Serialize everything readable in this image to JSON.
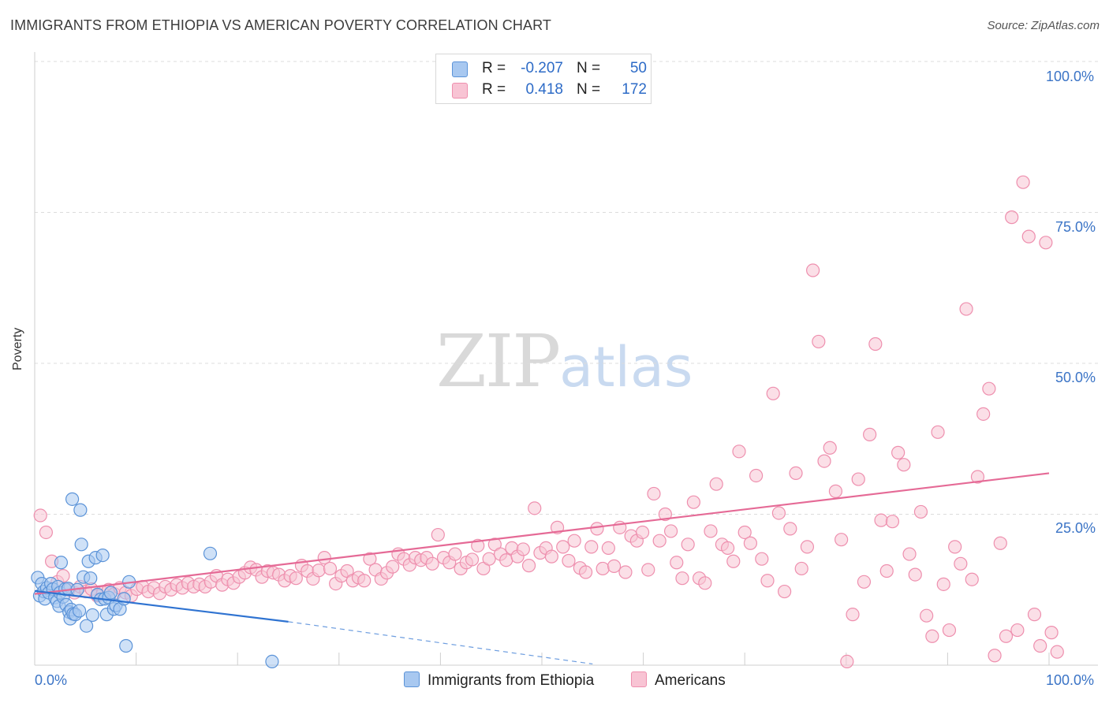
{
  "header": {
    "title": "IMMIGRANTS FROM ETHIOPIA VS AMERICAN POVERTY CORRELATION CHART",
    "source": "Source: ZipAtlas.com"
  },
  "legend": {
    "rows": [
      {
        "r_label": "R =",
        "r_value": "-0.207",
        "n_label": "N =",
        "n_value": "50",
        "color": "#a8c8f0"
      },
      {
        "r_label": "R =",
        "r_value": "0.418",
        "n_label": "N =",
        "n_value": "172",
        "color": "#f8b8cc"
      }
    ],
    "bottom": [
      {
        "label": "Immigrants from Ethiopia",
        "color": "#a8c8f0"
      },
      {
        "label": "Americans",
        "color": "#f8b8cc"
      }
    ]
  },
  "watermark": {
    "zip": "ZIP",
    "atlas": "atlas"
  },
  "colors": {
    "blue_fill": "#a8c8f0",
    "blue_stroke": "#5b93d8",
    "blue_line": "#2f73d1",
    "pink_fill": "#f8c4d4",
    "pink_stroke": "#ee8fae",
    "pink_line": "#e56a96",
    "tick_text": "#3b74c6",
    "grid": "#dcdcdc"
  },
  "chart_data": {
    "type": "scatter",
    "title": "IMMIGRANTS FROM ETHIOPIA VS AMERICAN POVERTY CORRELATION CHART",
    "xlabel": "",
    "ylabel": "Poverty",
    "xlim": [
      0,
      100
    ],
    "ylim": [
      0,
      100
    ],
    "x_ticks": [
      "0.0%",
      "100.0%"
    ],
    "y_ticks": [
      "25.0%",
      "50.0%",
      "75.0%",
      "100.0%"
    ],
    "y_tick_values": [
      25,
      50,
      75,
      100
    ],
    "grid": true,
    "legend_position": "top-center",
    "series": [
      {
        "name": "Immigrants from Ethiopia",
        "R": -0.207,
        "N": 50,
        "trend": {
          "x": [
            0,
            25
          ],
          "y": [
            12.3,
            7.2
          ],
          "dashed_to": [
            55,
            0.2
          ]
        },
        "points": [
          [
            0.3,
            14.5
          ],
          [
            0.5,
            11.5
          ],
          [
            0.7,
            13.5
          ],
          [
            0.9,
            12.2
          ],
          [
            1.0,
            11.0
          ],
          [
            1.2,
            12.8
          ],
          [
            1.4,
            12.0
          ],
          [
            1.6,
            13.5
          ],
          [
            1.8,
            12.6
          ],
          [
            2.0,
            11.2
          ],
          [
            2.2,
            10.6
          ],
          [
            2.3,
            13.0
          ],
          [
            2.4,
            9.8
          ],
          [
            2.5,
            12.0
          ],
          [
            2.6,
            17.0
          ],
          [
            2.8,
            11.3
          ],
          [
            3.0,
            12.6
          ],
          [
            3.1,
            10.0
          ],
          [
            3.3,
            12.7
          ],
          [
            3.4,
            8.8
          ],
          [
            3.5,
            7.7
          ],
          [
            3.6,
            9.2
          ],
          [
            3.7,
            27.5
          ],
          [
            3.8,
            8.5
          ],
          [
            4.0,
            8.4
          ],
          [
            4.2,
            12.5
          ],
          [
            4.4,
            9.0
          ],
          [
            4.5,
            25.7
          ],
          [
            4.6,
            20.0
          ],
          [
            4.8,
            14.6
          ],
          [
            5.1,
            6.5
          ],
          [
            5.3,
            17.2
          ],
          [
            5.5,
            14.4
          ],
          [
            5.7,
            8.3
          ],
          [
            6.0,
            17.8
          ],
          [
            6.2,
            11.7
          ],
          [
            6.5,
            10.9
          ],
          [
            6.7,
            18.2
          ],
          [
            6.9,
            11.0
          ],
          [
            7.1,
            8.4
          ],
          [
            7.3,
            11.2
          ],
          [
            7.5,
            12.0
          ],
          [
            7.8,
            9.3
          ],
          [
            8.0,
            9.9
          ],
          [
            8.4,
            9.3
          ],
          [
            8.8,
            11.0
          ],
          [
            9.0,
            3.2
          ],
          [
            9.3,
            13.8
          ],
          [
            17.3,
            18.5
          ],
          [
            23.4,
            0.6
          ]
        ]
      },
      {
        "name": "Americans",
        "R": 0.418,
        "N": 172,
        "trend": {
          "x": [
            0,
            100
          ],
          "y": [
            11.8,
            31.8
          ]
        },
        "points": [
          [
            0.4,
            24.8
          ],
          [
            0.8,
            22.0
          ],
          [
            1.2,
            17.2
          ],
          [
            1.6,
            13.8
          ],
          [
            2.0,
            14.8
          ],
          [
            2.4,
            12.5
          ],
          [
            2.8,
            12.0
          ],
          [
            3.2,
            13.0
          ],
          [
            3.6,
            12.2
          ],
          [
            4.0,
            12.6
          ],
          [
            4.4,
            11.5
          ],
          [
            4.8,
            12.0
          ],
          [
            5.2,
            12.5
          ],
          [
            5.6,
            11.8
          ],
          [
            6.0,
            12.8
          ],
          [
            6.4,
            12.0
          ],
          [
            6.8,
            11.5
          ],
          [
            7.2,
            12.6
          ],
          [
            7.6,
            13.0
          ],
          [
            8.0,
            12.2
          ],
          [
            8.4,
            12.8
          ],
          [
            8.8,
            11.9
          ],
          [
            9.2,
            13.0
          ],
          [
            9.6,
            12.5
          ],
          [
            10.0,
            13.3
          ],
          [
            10.4,
            12.8
          ],
          [
            10.8,
            13.6
          ],
          [
            11.2,
            13.0
          ],
          [
            11.6,
            13.4
          ],
          [
            12.0,
            13.0
          ],
          [
            12.4,
            13.8
          ],
          [
            12.8,
            14.8
          ],
          [
            13.2,
            13.3
          ],
          [
            13.6,
            14.2
          ],
          [
            14.0,
            13.6
          ],
          [
            14.4,
            14.6
          ],
          [
            14.8,
            15.3
          ],
          [
            15.2,
            16.2
          ],
          [
            15.6,
            15.8
          ],
          [
            16.0,
            14.6
          ],
          [
            16.4,
            15.6
          ],
          [
            16.8,
            15.3
          ],
          [
            17.2,
            15.0
          ],
          [
            17.6,
            14.0
          ],
          [
            18.0,
            14.8
          ],
          [
            18.4,
            14.4
          ],
          [
            18.8,
            16.5
          ],
          [
            19.2,
            15.6
          ],
          [
            19.6,
            14.3
          ],
          [
            20.0,
            15.7
          ],
          [
            20.4,
            17.8
          ],
          [
            20.8,
            16.0
          ],
          [
            21.2,
            13.5
          ],
          [
            21.6,
            14.8
          ],
          [
            22.0,
            15.6
          ],
          [
            22.4,
            14.0
          ],
          [
            22.8,
            14.5
          ],
          [
            23.2,
            14.0
          ],
          [
            23.6,
            17.6
          ],
          [
            24.0,
            15.8
          ],
          [
            24.4,
            14.3
          ],
          [
            24.8,
            15.3
          ],
          [
            25.2,
            16.3
          ],
          [
            25.6,
            18.4
          ],
          [
            26.0,
            17.6
          ],
          [
            26.4,
            16.6
          ],
          [
            26.8,
            17.8
          ],
          [
            27.2,
            17.4
          ],
          [
            27.6,
            17.8
          ],
          [
            28.0,
            16.8
          ],
          [
            28.4,
            21.6
          ],
          [
            28.8,
            17.8
          ],
          [
            29.2,
            17.0
          ],
          [
            29.6,
            18.4
          ],
          [
            30.0,
            16.0
          ],
          [
            30.4,
            17.0
          ],
          [
            30.8,
            17.5
          ],
          [
            31.2,
            19.8
          ],
          [
            31.6,
            16.0
          ],
          [
            32.0,
            17.6
          ],
          [
            32.4,
            20.0
          ],
          [
            32.8,
            18.4
          ],
          [
            33.2,
            17.4
          ],
          [
            33.6,
            19.4
          ],
          [
            34.0,
            18.0
          ],
          [
            34.4,
            19.2
          ],
          [
            34.8,
            16.5
          ],
          [
            35.2,
            26.0
          ],
          [
            35.6,
            18.6
          ],
          [
            36.0,
            19.4
          ],
          [
            36.4,
            18.0
          ],
          [
            36.8,
            22.8
          ],
          [
            37.2,
            19.6
          ],
          [
            37.6,
            17.3
          ],
          [
            38.0,
            20.6
          ],
          [
            38.4,
            16.1
          ],
          [
            38.8,
            15.4
          ],
          [
            39.2,
            19.6
          ],
          [
            39.6,
            22.6
          ],
          [
            40.0,
            16.0
          ],
          [
            40.4,
            19.4
          ],
          [
            40.8,
            16.4
          ],
          [
            41.2,
            22.8
          ],
          [
            41.6,
            15.4
          ],
          [
            42.0,
            21.4
          ],
          [
            42.4,
            20.6
          ],
          [
            42.8,
            22.0
          ],
          [
            43.2,
            15.8
          ],
          [
            43.6,
            28.4
          ],
          [
            44.0,
            20.6
          ],
          [
            44.4,
            25.0
          ],
          [
            44.8,
            22.2
          ],
          [
            45.2,
            17.0
          ],
          [
            45.6,
            14.4
          ],
          [
            46.0,
            20.0
          ],
          [
            46.4,
            27.0
          ],
          [
            46.8,
            14.4
          ],
          [
            47.2,
            13.6
          ],
          [
            47.6,
            22.2
          ],
          [
            48.0,
            30.0
          ],
          [
            48.4,
            20.0
          ],
          [
            48.8,
            19.4
          ],
          [
            49.2,
            17.2
          ],
          [
            49.6,
            35.4
          ],
          [
            50.0,
            22.0
          ],
          [
            50.4,
            20.2
          ],
          [
            50.8,
            31.4
          ],
          [
            51.2,
            17.6
          ],
          [
            51.6,
            14.0
          ],
          [
            52.0,
            45.0
          ],
          [
            52.4,
            25.2
          ],
          [
            52.8,
            12.2
          ],
          [
            53.2,
            22.6
          ],
          [
            53.6,
            31.8
          ],
          [
            54.0,
            16.0
          ],
          [
            54.4,
            19.6
          ],
          [
            54.8,
            65.4
          ],
          [
            55.2,
            53.6
          ],
          [
            55.6,
            33.8
          ],
          [
            56.0,
            36.0
          ],
          [
            56.4,
            28.8
          ],
          [
            56.8,
            20.8
          ],
          [
            57.2,
            0.6
          ],
          [
            57.6,
            8.4
          ],
          [
            58.0,
            30.8
          ],
          [
            58.4,
            13.8
          ],
          [
            58.8,
            38.2
          ],
          [
            59.2,
            53.2
          ],
          [
            59.6,
            24.0
          ],
          [
            60.0,
            15.6
          ],
          [
            60.4,
            23.8
          ],
          [
            60.8,
            35.2
          ],
          [
            61.2,
            33.2
          ],
          [
            61.6,
            18.4
          ],
          [
            62.0,
            15.0
          ],
          [
            62.4,
            25.4
          ],
          [
            62.8,
            8.2
          ],
          [
            63.2,
            4.8
          ],
          [
            63.6,
            38.6
          ],
          [
            64.0,
            13.4
          ],
          [
            64.4,
            5.8
          ],
          [
            64.8,
            19.6
          ],
          [
            65.2,
            16.8
          ],
          [
            65.6,
            59.0
          ],
          [
            66.0,
            14.2
          ],
          [
            66.4,
            31.2
          ],
          [
            66.8,
            41.6
          ],
          [
            67.2,
            45.8
          ],
          [
            67.6,
            1.6
          ],
          [
            68.0,
            20.2
          ],
          [
            68.4,
            4.8
          ],
          [
            68.8,
            74.2
          ],
          [
            69.2,
            5.8
          ],
          [
            69.6,
            80.0
          ],
          [
            70.0,
            71.0
          ],
          [
            70.4,
            8.4
          ],
          [
            70.8,
            3.2
          ],
          [
            71.2,
            70.0
          ],
          [
            71.6,
            5.4
          ],
          [
            72.0,
            2.2
          ]
        ]
      }
    ]
  }
}
